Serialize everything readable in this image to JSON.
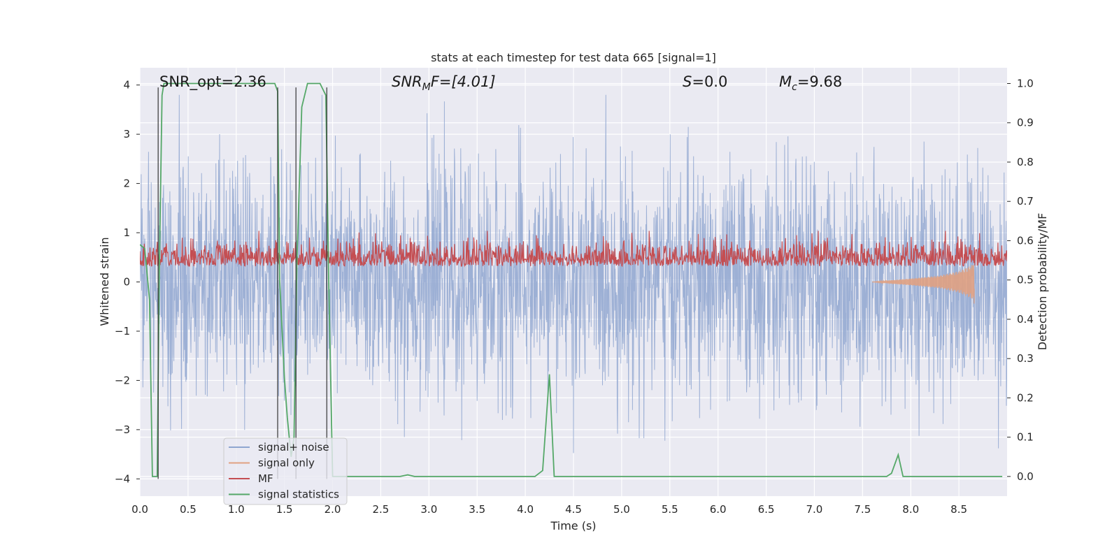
{
  "chart_data": {
    "type": "line",
    "title": "stats at each timestep for test data 665 [signal=1]",
    "xlabel": "Time (s)",
    "ylabel_left": "Whitened strain",
    "ylabel_right": "Detection probability/MF",
    "xlim": [
      0.0,
      9.0
    ],
    "ylim_left": [
      -4.35,
      4.35
    ],
    "ylim_right": [
      -0.05,
      1.04
    ],
    "xticks": [
      "0.0",
      "0.5",
      "1.0",
      "1.5",
      "2.0",
      "2.5",
      "3.0",
      "3.5",
      "4.0",
      "4.5",
      "5.0",
      "5.5",
      "6.0",
      "6.5",
      "7.0",
      "7.5",
      "8.0",
      "8.5"
    ],
    "xtick_values": [
      0.0,
      0.5,
      1.0,
      1.5,
      2.0,
      2.5,
      3.0,
      3.5,
      4.0,
      4.5,
      5.0,
      5.5,
      6.0,
      6.5,
      7.0,
      7.5,
      8.0,
      8.5
    ],
    "yticks_left": [
      "4",
      "3",
      "2",
      "1",
      "0",
      "−1",
      "−2",
      "−3",
      "−4"
    ],
    "ytick_values_left": [
      4,
      3,
      2,
      1,
      0,
      -1,
      -2,
      -3,
      -4
    ],
    "yticks_right": [
      "1.0",
      "0.9",
      "0.8",
      "0.7",
      "0.6",
      "0.5",
      "0.4",
      "0.3",
      "0.2",
      "0.1",
      "0.0"
    ],
    "ytick_values_right": [
      1.0,
      0.9,
      0.8,
      0.7,
      0.6,
      0.5,
      0.4,
      0.3,
      0.2,
      0.1,
      0.0
    ],
    "grid": true,
    "legend_placement": "lower-left",
    "annotations": {
      "snr_opt": "SNR_opt=2.36",
      "snr_mf_sym": "SNR",
      "snr_mf_sub": "M",
      "snr_mf_rest": "F=[4.01]",
      "s_sym": "S",
      "s_rest": "=0.0",
      "mc_sym": "M",
      "mc_sub": "c",
      "mc_rest": "=9.68"
    },
    "series": [
      {
        "name": "signal+ noise",
        "color": "#8fa6d0",
        "axis": "left",
        "description_kind": "whitened strain noise, amplitude ~±2 to ±3.8"
      },
      {
        "name": "signal only",
        "color": "#e0a182",
        "axis": "left",
        "points": [
          [
            7.6,
            0.0
          ],
          [
            8.0,
            -0.07
          ],
          [
            8.3,
            -0.13
          ],
          [
            8.5,
            -0.22
          ],
          [
            8.64,
            -0.35
          ],
          [
            8.66,
            -0.5
          ]
        ]
      },
      {
        "name": "MF",
        "color": "#c44e52",
        "axis": "right",
        "range": [
          0.5,
          0.62
        ]
      },
      {
        "name": "signal statistics",
        "color": "#55a868",
        "axis": "right",
        "points": [
          [
            0.0,
            0.59
          ],
          [
            0.05,
            0.58
          ],
          [
            0.1,
            0.45
          ],
          [
            0.13,
            0.0
          ],
          [
            0.18,
            0.0
          ],
          [
            0.2,
            0.5
          ],
          [
            0.23,
            0.97
          ],
          [
            0.25,
            1.0
          ],
          [
            0.5,
            1.0
          ],
          [
            1.0,
            1.0
          ],
          [
            1.4,
            1.0
          ],
          [
            1.43,
            0.98
          ],
          [
            1.45,
            0.5
          ],
          [
            1.5,
            0.25
          ],
          [
            1.53,
            0.15
          ],
          [
            1.57,
            0.05
          ],
          [
            1.6,
            0.1
          ],
          [
            1.63,
            0.55
          ],
          [
            1.68,
            0.94
          ],
          [
            1.74,
            1.0
          ],
          [
            1.87,
            1.0
          ],
          [
            1.93,
            0.97
          ],
          [
            1.96,
            0.5
          ],
          [
            2.0,
            0.0
          ],
          [
            2.7,
            0.0
          ],
          [
            2.78,
            0.004
          ],
          [
            2.85,
            0.0
          ],
          [
            4.1,
            0.0
          ],
          [
            4.18,
            0.015
          ],
          [
            4.25,
            0.26
          ],
          [
            4.3,
            0.0
          ],
          [
            7.75,
            0.0
          ],
          [
            7.8,
            0.008
          ],
          [
            7.87,
            0.055
          ],
          [
            7.92,
            0.0
          ],
          [
            8.95,
            0.0
          ]
        ]
      }
    ],
    "vertical_lines_x": [
      0.19,
      1.43,
      1.62,
      1.94
    ]
  }
}
